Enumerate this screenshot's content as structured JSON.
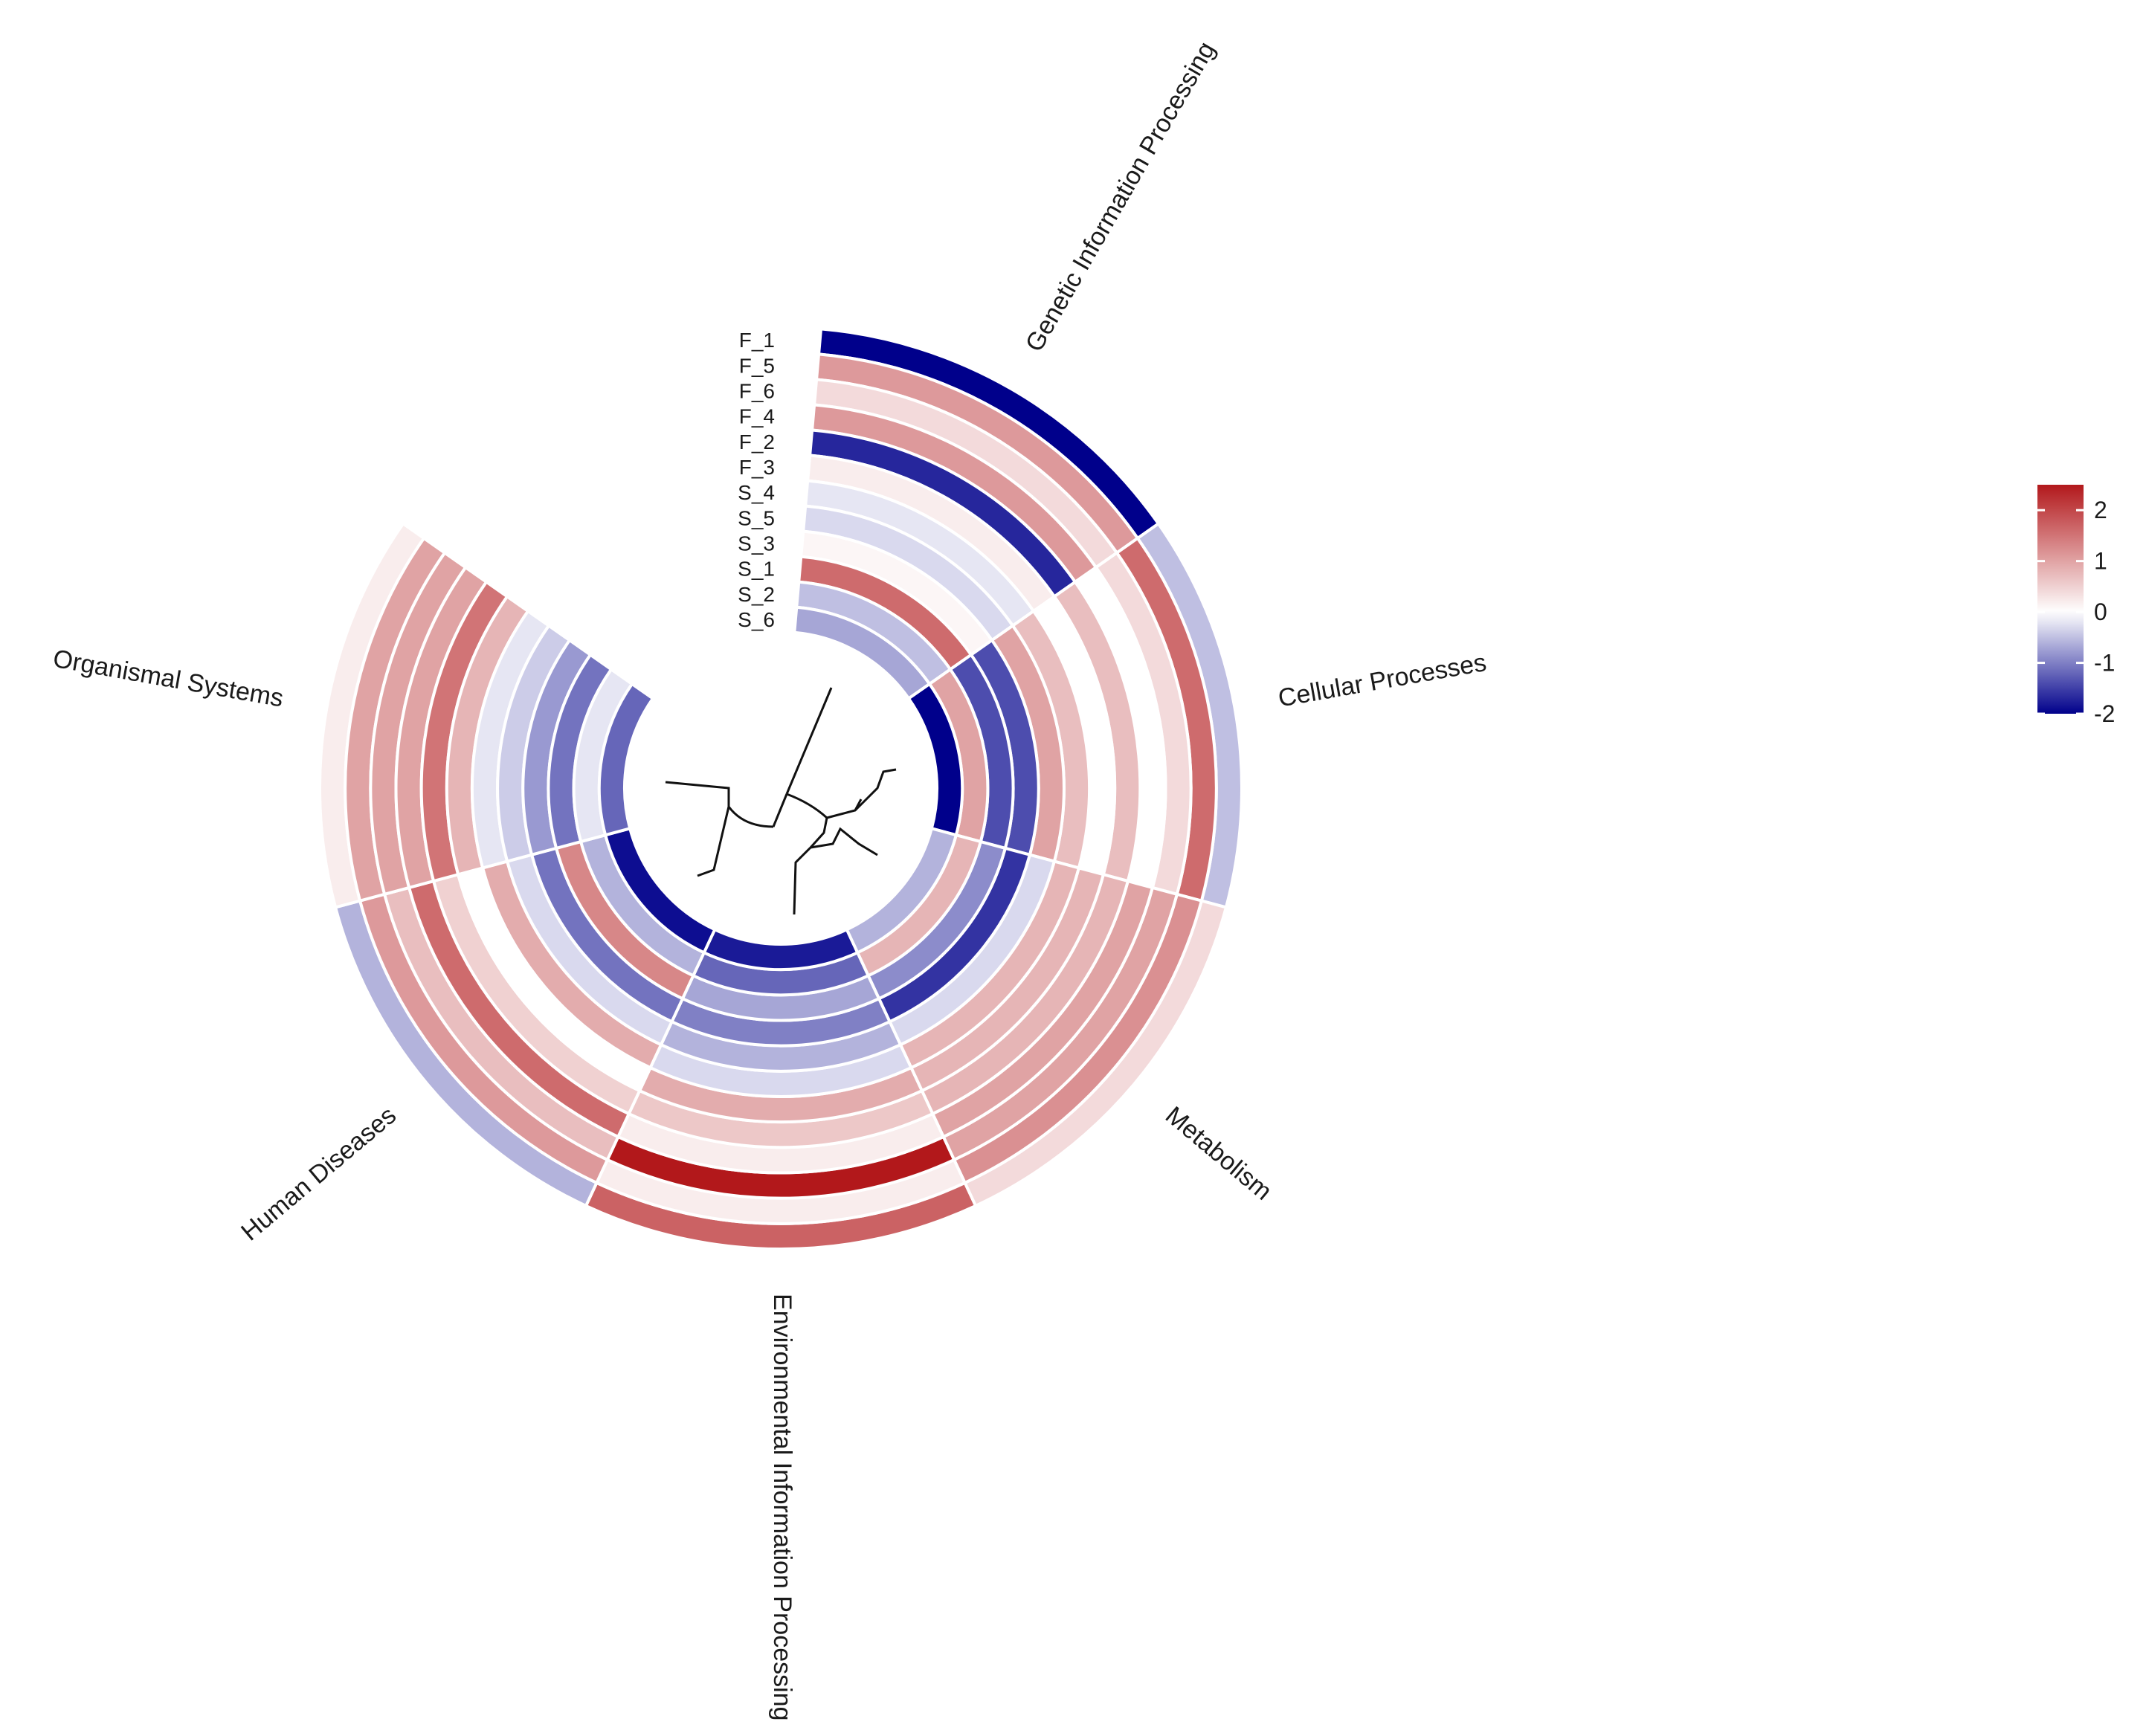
{
  "chart_data": {
    "type": "heatmap",
    "layout": "circular",
    "title": "",
    "categories": [
      "Genetic Information Processing",
      "Cellular Processes",
      "Metabolism",
      "Environmental Information Processing",
      "Human Diseases",
      "Organismal Systems"
    ],
    "samples": [
      "F_1",
      "F_5",
      "F_6",
      "F_4",
      "F_2",
      "F_3",
      "S_4",
      "S_5",
      "S_3",
      "S_1",
      "S_2",
      "S_6"
    ],
    "values": [
      [
        -2.0,
        -0.5,
        0.4,
        1.7,
        -0.6,
        0.2
      ],
      [
        1.1,
        1.6,
        1.2,
        0.2,
        1.1,
        1.0
      ],
      [
        0.4,
        0.4,
        1.0,
        2.5,
        0.7,
        1.0
      ],
      [
        1.1,
        0.0,
        1.0,
        0.2,
        1.6,
        1.0
      ],
      [
        -1.7,
        0.7,
        0.8,
        0.6,
        0.5,
        1.5
      ],
      [
        0.2,
        0.0,
        0.8,
        0.9,
        0.0,
        0.8
      ],
      [
        -0.2,
        0.7,
        0.8,
        -0.3,
        0.9,
        -0.2
      ],
      [
        -0.3,
        1.0,
        -0.3,
        -0.6,
        -0.3,
        -0.4
      ],
      [
        0.1,
        -1.4,
        -1.6,
        -1.0,
        -1.1,
        -0.8
      ],
      [
        1.6,
        -1.4,
        -0.9,
        -0.7,
        1.3,
        -1.1
      ],
      [
        -0.5,
        1.0,
        0.8,
        -1.2,
        -0.6,
        -0.2
      ],
      [
        -0.7,
        -2.0,
        -0.6,
        -1.8,
        -1.9,
        -1.2
      ]
    ],
    "colorbar": {
      "min": -2,
      "max": 2.5,
      "ticks": [
        "2",
        "1",
        "0",
        "-1",
        "-2"
      ],
      "tick_values": [
        2,
        1,
        0,
        -1,
        -2
      ],
      "low_color": "#00008b",
      "mid_color": "#ffffff",
      "high_color": "#b2181b"
    },
    "legend_position": "right"
  }
}
